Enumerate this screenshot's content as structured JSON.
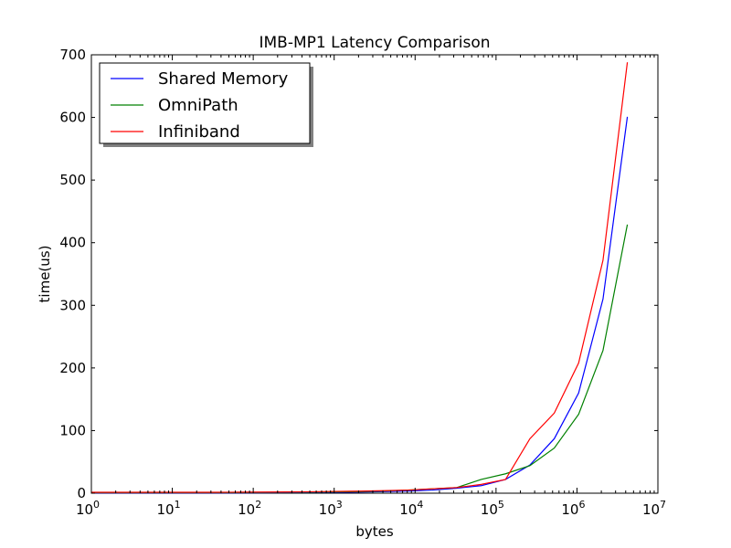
{
  "chart_data": {
    "type": "line",
    "title": "IMB-MP1 Latency Comparison",
    "xlabel": "bytes",
    "ylabel": "time(us)",
    "x_scale": "log",
    "xlim": [
      1,
      10000000
    ],
    "ylim": [
      0,
      700
    ],
    "x_ticks": [
      {
        "base": "10",
        "exp": "0"
      },
      {
        "base": "10",
        "exp": "1"
      },
      {
        "base": "10",
        "exp": "2"
      },
      {
        "base": "10",
        "exp": "3"
      },
      {
        "base": "10",
        "exp": "4"
      },
      {
        "base": "10",
        "exp": "5"
      },
      {
        "base": "10",
        "exp": "6"
      },
      {
        "base": "10",
        "exp": "7"
      }
    ],
    "y_ticks": [
      "0",
      "100",
      "200",
      "300",
      "400",
      "500",
      "600",
      "700"
    ],
    "grid": false,
    "legend_position": "top-left",
    "x": [
      1,
      2,
      4,
      8,
      16,
      32,
      64,
      128,
      256,
      512,
      1024,
      2048,
      4096,
      8192,
      16384,
      32768,
      65536,
      131072,
      262144,
      524288,
      1048576,
      2097152,
      4194304
    ],
    "series": [
      {
        "name": "Shared Memory",
        "color": "#0000ff",
        "values": [
          0.5,
          0.5,
          0.5,
          0.5,
          0.5,
          0.5,
          0.6,
          0.7,
          0.8,
          1.0,
          1.3,
          1.8,
          2.5,
          3.5,
          5,
          8,
          12,
          22,
          45,
          87,
          160,
          310,
          601
        ]
      },
      {
        "name": "OmniPath",
        "color": "#008000",
        "values": [
          1.0,
          1.0,
          1.0,
          1.0,
          1.0,
          1.0,
          1.1,
          1.2,
          1.4,
          1.6,
          2.0,
          2.5,
          3.5,
          5,
          7,
          9,
          22,
          31,
          44,
          72,
          126,
          228,
          429
        ]
      },
      {
        "name": "Infiniband",
        "color": "#ff0000",
        "values": [
          1.5,
          1.5,
          1.5,
          1.5,
          1.5,
          1.5,
          1.6,
          1.8,
          2.0,
          2.3,
          2.8,
          3.3,
          4,
          5,
          7,
          9,
          14,
          22,
          87,
          128,
          208,
          372,
          688
        ]
      }
    ]
  }
}
